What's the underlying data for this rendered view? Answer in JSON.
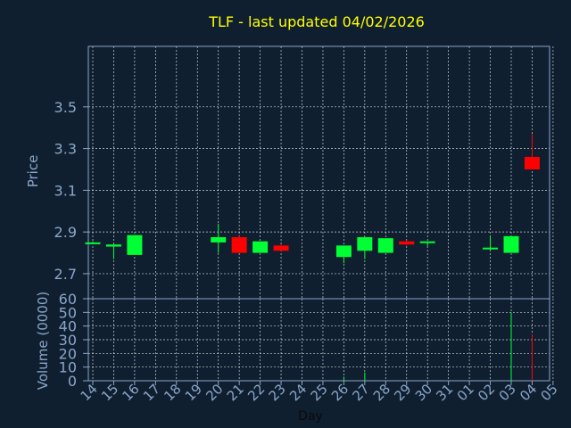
{
  "colors": {
    "background": "#0f1f30",
    "axis": "#8ba6c9",
    "grid": "#ffffff",
    "title": "#ffff00",
    "up": "#00ff33",
    "down": "#ff0000"
  },
  "chart_data": {
    "type": "candlestick",
    "title": "TLF - last updated 04/02/2026",
    "xlabel": "Day",
    "price_panel": {
      "ylabel": "Price",
      "ylim": [
        2.58,
        3.79
      ],
      "yticks": [
        "2.7",
        "2.9",
        "3.1",
        "3.3",
        "3.5"
      ],
      "grid": true
    },
    "volume_panel": {
      "ylabel": "Volume (0000)",
      "ylim": [
        0,
        60
      ],
      "yticks": [
        "0",
        "10",
        "20",
        "30",
        "40",
        "50",
        "60"
      ],
      "grid": true
    },
    "x_ticks": [
      "14",
      "15",
      "16",
      "17",
      "18",
      "19",
      "20",
      "21",
      "22",
      "23",
      "24",
      "25",
      "26",
      "27",
      "28",
      "29",
      "30",
      "31",
      "01",
      "02",
      "03",
      "04",
      "05"
    ],
    "candles": [
      {
        "day": "14",
        "open": 2.85,
        "high": 2.855,
        "low": 2.845,
        "close": 2.85,
        "volume": 0
      },
      {
        "day": "15",
        "open": 2.83,
        "high": 2.84,
        "low": 2.77,
        "close": 2.84,
        "volume": 0
      },
      {
        "day": "16",
        "open": 2.79,
        "high": 2.885,
        "low": 2.79,
        "close": 2.885,
        "volume": 0
      },
      {
        "day": "20",
        "open": 2.85,
        "high": 2.94,
        "low": 2.8,
        "close": 2.875,
        "volume": 0
      },
      {
        "day": "21",
        "open": 2.875,
        "high": 2.88,
        "low": 2.8,
        "close": 2.8,
        "volume": 0
      },
      {
        "day": "22",
        "open": 2.8,
        "high": 2.855,
        "low": 2.8,
        "close": 2.855,
        "volume": 0
      },
      {
        "day": "23",
        "open": 2.835,
        "high": 2.84,
        "low": 2.81,
        "close": 2.81,
        "volume": 0
      },
      {
        "day": "26",
        "open": 2.78,
        "high": 2.835,
        "low": 2.75,
        "close": 2.835,
        "volume": 3
      },
      {
        "day": "27",
        "open": 2.81,
        "high": 2.875,
        "low": 2.77,
        "close": 2.875,
        "volume": 6
      },
      {
        "day": "28",
        "open": 2.8,
        "high": 2.87,
        "low": 2.8,
        "close": 2.87,
        "volume": 0
      },
      {
        "day": "29",
        "open": 2.855,
        "high": 2.86,
        "low": 2.835,
        "close": 2.84,
        "volume": 0
      },
      {
        "day": "30",
        "open": 2.85,
        "high": 2.855,
        "low": 2.83,
        "close": 2.855,
        "volume": 0
      },
      {
        "day": "02",
        "open": 2.82,
        "high": 2.88,
        "low": 2.815,
        "close": 2.825,
        "volume": 0
      },
      {
        "day": "03",
        "open": 2.8,
        "high": 2.88,
        "low": 2.8,
        "close": 2.88,
        "volume": 50
      },
      {
        "day": "04",
        "open": 3.26,
        "high": 3.37,
        "low": 3.2,
        "close": 3.2,
        "volume": 34
      }
    ]
  }
}
